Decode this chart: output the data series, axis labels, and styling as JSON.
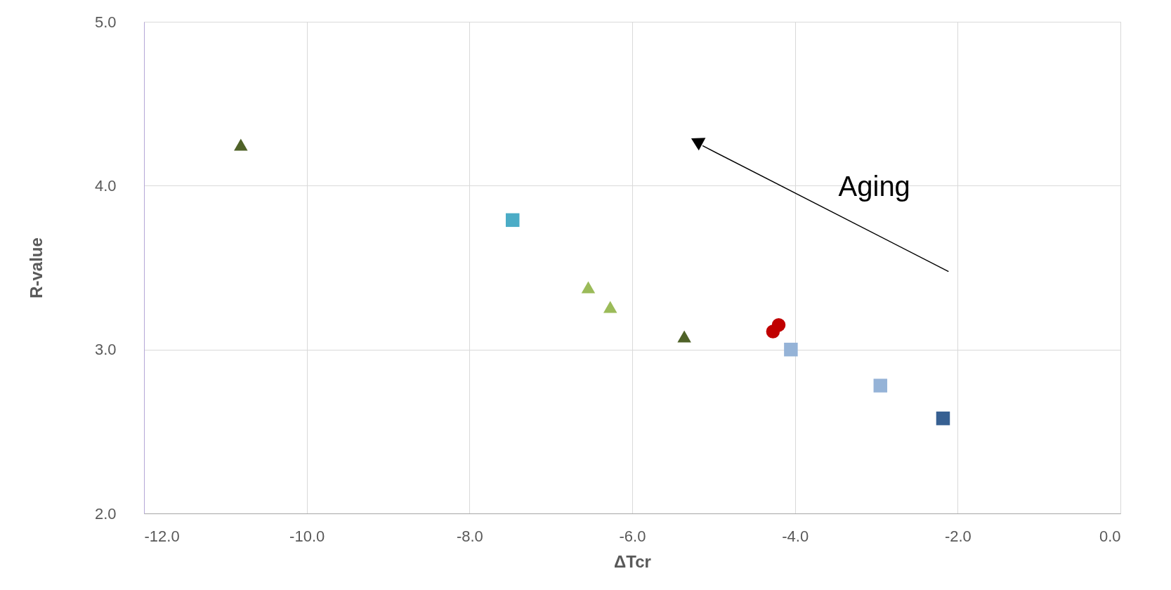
{
  "chart_data": {
    "type": "scatter",
    "xlabel": "ΔTcr",
    "ylabel": "R-value",
    "xlim": [
      -12,
      0
    ],
    "ylim": [
      2,
      5
    ],
    "xticks": [
      {
        "value": -12,
        "label": "-12.0"
      },
      {
        "value": -10,
        "label": "-10.0"
      },
      {
        "value": -8,
        "label": "-8.0"
      },
      {
        "value": -6,
        "label": "-6.0"
      },
      {
        "value": -4,
        "label": "-4.0"
      },
      {
        "value": -2,
        "label": "-2.0"
      },
      {
        "value": 0,
        "label": "0.0"
      }
    ],
    "yticks": [
      {
        "value": 2,
        "label": "2.0"
      },
      {
        "value": 3,
        "label": "3.0"
      },
      {
        "value": 4,
        "label": "4.0"
      },
      {
        "value": 5,
        "label": "5.0"
      }
    ],
    "grid": true,
    "series": [
      {
        "color": "#4f6228",
        "marker": "triangle",
        "x": [
          -10.81
        ],
        "values": [
          4.25
        ]
      },
      {
        "color": "#4bacc6",
        "marker": "square",
        "x": [
          -7.47
        ],
        "values": [
          3.79
        ]
      },
      {
        "color": "#9bbb59",
        "marker": "triangle",
        "x": [
          -6.54
        ],
        "values": [
          3.38
        ]
      },
      {
        "color": "#9bbb59",
        "marker": "triangle",
        "x": [
          -6.27
        ],
        "values": [
          3.26
        ]
      },
      {
        "color": "#4f6228",
        "marker": "triangle",
        "x": [
          -5.36
        ],
        "values": [
          3.08
        ]
      },
      {
        "color": "#c00000",
        "marker": "circle",
        "x": [
          -4.2
        ],
        "values": [
          3.15
        ]
      },
      {
        "color": "#c00000",
        "marker": "circle",
        "x": [
          -4.27
        ],
        "values": [
          3.11
        ]
      },
      {
        "color": "#95b3d7",
        "marker": "square",
        "x": [
          -4.05
        ],
        "values": [
          3.0
        ]
      },
      {
        "color": "#95b3d7",
        "marker": "square",
        "x": [
          -2.95
        ],
        "values": [
          2.78
        ]
      },
      {
        "color": "#376092",
        "marker": "square",
        "x": [
          -2.18
        ],
        "values": [
          2.58
        ]
      }
    ],
    "annotations": [
      "Aging"
    ]
  }
}
